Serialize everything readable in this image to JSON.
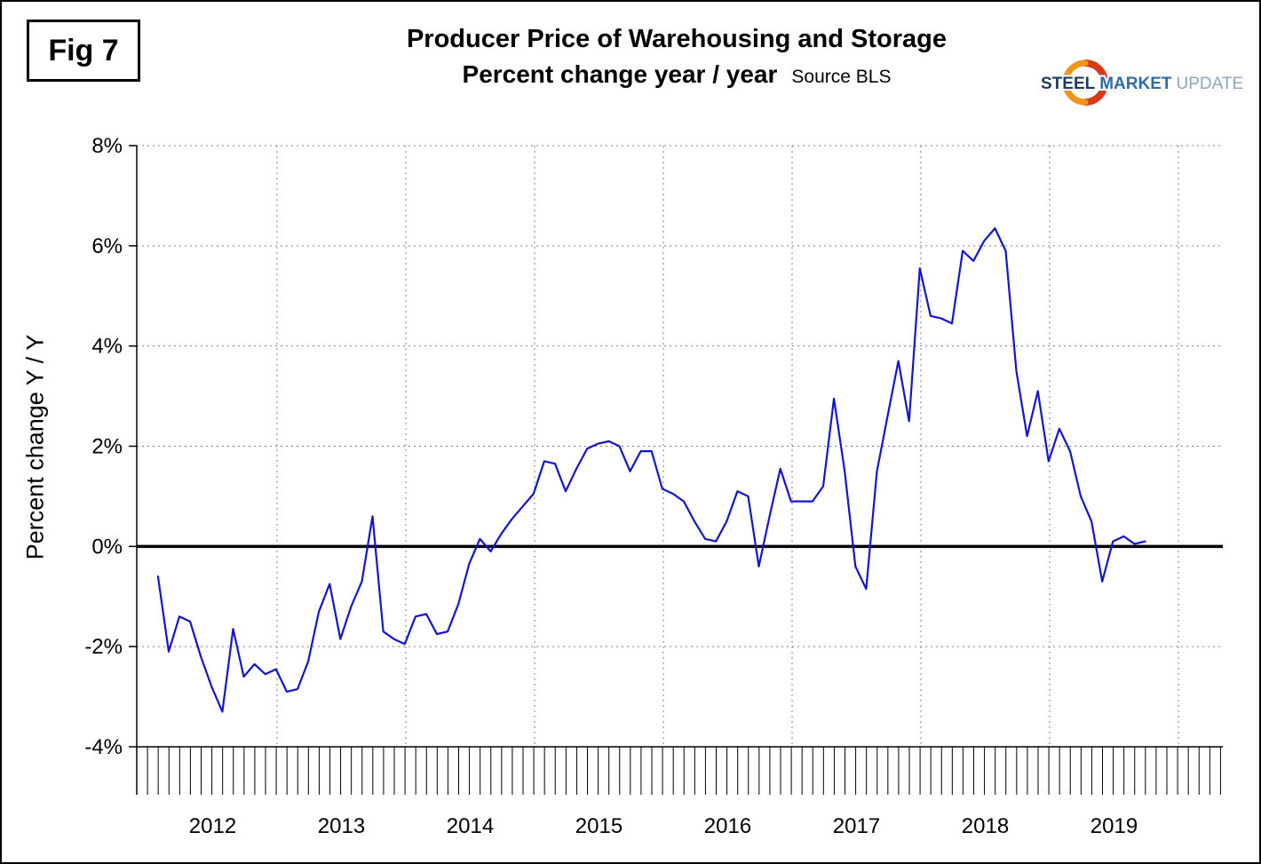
{
  "fig_label": "Fig 7",
  "header": {
    "title": "Producer Price of Warehousing and Storage",
    "subtitle": "Percent change year / year",
    "source": "Source BLS"
  },
  "logo": {
    "word1": "STEEL",
    "word2": "MARKET",
    "word3": "UPDATE",
    "navy": "#1e3a5f",
    "blue": "#2e6da4",
    "light_blue": "#8ca6c4",
    "ring_red": "#d6391c",
    "ring_orange": "#f0941e"
  },
  "chart_data": {
    "type": "line",
    "title": "Producer Price of Warehousing and Storage",
    "subtitle": "Percent change year / year",
    "source": "Source BLS",
    "ylabel": "Percent change Y / Y",
    "ylim": [
      -4,
      8
    ],
    "yticks": [
      8,
      6,
      4,
      2,
      0,
      -2,
      -4
    ],
    "ytick_suffix": "%",
    "grid": "dotted",
    "zero_baseline": true,
    "legend": "none",
    "years": [
      "2012",
      "2013",
      "2014",
      "2015",
      "2016",
      "2017",
      "2018",
      "2019"
    ],
    "frequency": "monthly",
    "start": "2012-01",
    "end": "2019-09",
    "line_color": "#1414cc",
    "series": [
      {
        "name": "PPI Warehousing and Storage, percent change year/year",
        "values": [
          -0.6,
          -2.1,
          -1.4,
          -1.5,
          -2.2,
          -2.8,
          -3.3,
          -1.65,
          -2.6,
          -2.35,
          -2.55,
          -2.45,
          -2.9,
          -2.85,
          -2.3,
          -1.3,
          -0.75,
          -1.85,
          -1.2,
          -0.7,
          0.6,
          -1.7,
          -1.85,
          -1.95,
          -1.4,
          -1.35,
          -1.75,
          -1.7,
          -1.15,
          -0.35,
          0.15,
          -0.1,
          0.25,
          0.55,
          0.8,
          1.05,
          1.7,
          1.65,
          1.1,
          1.55,
          1.95,
          2.05,
          2.1,
          2.0,
          1.5,
          1.9,
          1.9,
          1.15,
          1.05,
          0.9,
          0.5,
          0.15,
          0.1,
          0.5,
          1.1,
          1.0,
          -0.4,
          0.6,
          1.55,
          0.9,
          0.9,
          0.9,
          1.2,
          2.95,
          1.5,
          -0.4,
          -0.85,
          1.5,
          2.6,
          3.7,
          2.5,
          5.55,
          4.6,
          4.55,
          4.45,
          5.9,
          5.7,
          6.1,
          6.35,
          5.9,
          3.5,
          2.2,
          3.1,
          1.7,
          2.35,
          1.9,
          1.0,
          0.5,
          -0.7,
          0.1,
          0.2,
          0.05,
          0.1
        ]
      }
    ]
  }
}
